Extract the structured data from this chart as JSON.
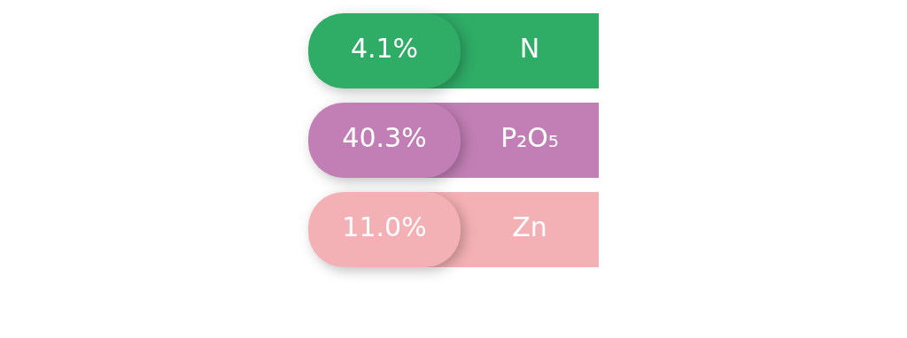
{
  "chart_data": {
    "type": "other",
    "categories": [
      "N",
      "P₂O₅",
      "Zn"
    ],
    "values": [
      4.1,
      40.3,
      11.0
    ],
    "value_labels": [
      "4.1%",
      "40.3%",
      "11.0%"
    ],
    "colors": [
      "#2fac66",
      "#c27fb5",
      "#f4b1b5"
    ]
  }
}
